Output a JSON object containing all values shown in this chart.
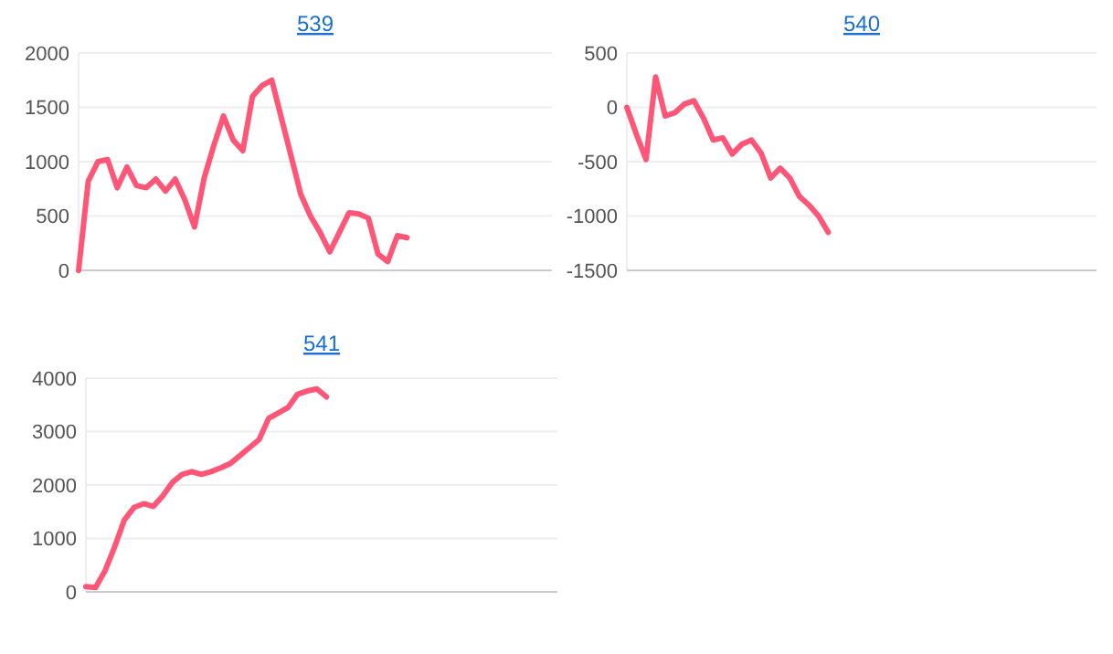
{
  "chart_data": [
    {
      "type": "line",
      "title": "539",
      "grid": "y",
      "color": "#ff5577",
      "ylim": [
        0,
        2000
      ],
      "yticks": [
        0,
        500,
        1000,
        1500,
        2000
      ],
      "marker": "none",
      "categories": [
        null,
        null,
        null,
        null,
        null,
        null,
        null,
        null,
        null,
        null,
        null,
        null,
        null,
        null,
        null,
        null,
        null,
        null,
        null,
        null,
        null,
        null,
        null,
        null,
        null,
        null,
        null,
        null,
        null,
        null,
        null,
        null,
        null,
        null,
        null,
        null,
        null,
        null,
        null,
        null,
        null,
        null,
        null,
        null,
        null,
        null,
        null,
        null,
        null,
        null
      ],
      "values": [
        0,
        820,
        1000,
        1020,
        760,
        950,
        780,
        760,
        840,
        730,
        840,
        650,
        400,
        850,
        1150,
        1420,
        1200,
        1100,
        1600,
        1700,
        1750,
        1400,
        1050,
        700,
        500,
        350,
        170,
        350,
        530,
        520,
        480,
        150,
        80,
        320,
        300,
        null,
        null,
        null,
        null,
        null,
        null,
        null,
        null,
        null,
        null,
        null,
        null,
        null,
        null,
        null
      ]
    },
    {
      "type": "line",
      "title": "540",
      "grid": "y",
      "color": "#ff5577",
      "ylim": [
        -1500,
        500
      ],
      "yticks": [
        -1500,
        -1000,
        -500,
        0,
        500
      ],
      "marker": "none",
      "categories": [
        null,
        null,
        null,
        null,
        null,
        null,
        null,
        null,
        null,
        null,
        null,
        null,
        null,
        null,
        null,
        null,
        null,
        null,
        null,
        null,
        null,
        null,
        null,
        null,
        null,
        null,
        null,
        null,
        null,
        null,
        null,
        null,
        null,
        null,
        null,
        null,
        null,
        null,
        null,
        null,
        null,
        null,
        null,
        null,
        null,
        null,
        null,
        null,
        null,
        null
      ],
      "values": [
        0,
        -250,
        -480,
        280,
        -80,
        -50,
        30,
        60,
        -100,
        -300,
        -280,
        -430,
        -340,
        -300,
        -420,
        -650,
        -560,
        -650,
        -820,
        -900,
        -1000,
        -1150,
        null,
        null,
        null,
        null,
        null,
        null,
        null,
        null,
        null,
        null,
        null,
        null,
        null,
        null,
        null,
        null,
        null,
        null,
        null,
        null,
        null,
        null,
        null,
        null,
        null,
        null,
        null,
        null
      ]
    },
    {
      "type": "line",
      "title": "541",
      "grid": "y",
      "color": "#ff5577",
      "ylim": [
        0,
        4000
      ],
      "yticks": [
        0,
        1000,
        2000,
        3000,
        4000
      ],
      "marker": "none",
      "categories": [
        null,
        null,
        null,
        null,
        null,
        null,
        null,
        null,
        null,
        null,
        null,
        null,
        null,
        null,
        null,
        null,
        null,
        null,
        null,
        null,
        null,
        null,
        null,
        null,
        null,
        null,
        null,
        null,
        null,
        null,
        null,
        null,
        null,
        null,
        null,
        null,
        null,
        null,
        null,
        null,
        null,
        null,
        null,
        null,
        null,
        null,
        null,
        null,
        null,
        null
      ],
      "values": [
        100,
        80,
        400,
        850,
        1350,
        1580,
        1650,
        1600,
        1800,
        2050,
        2200,
        2250,
        2200,
        2250,
        2320,
        2400,
        2550,
        2700,
        2850,
        3250,
        3350,
        3450,
        3700,
        3760,
        3800,
        3650,
        null,
        null,
        null,
        null,
        null,
        null,
        null,
        null,
        null,
        null,
        null,
        null,
        null,
        null,
        null,
        null,
        null,
        null,
        null,
        null,
        null,
        null,
        null,
        null
      ]
    }
  ]
}
